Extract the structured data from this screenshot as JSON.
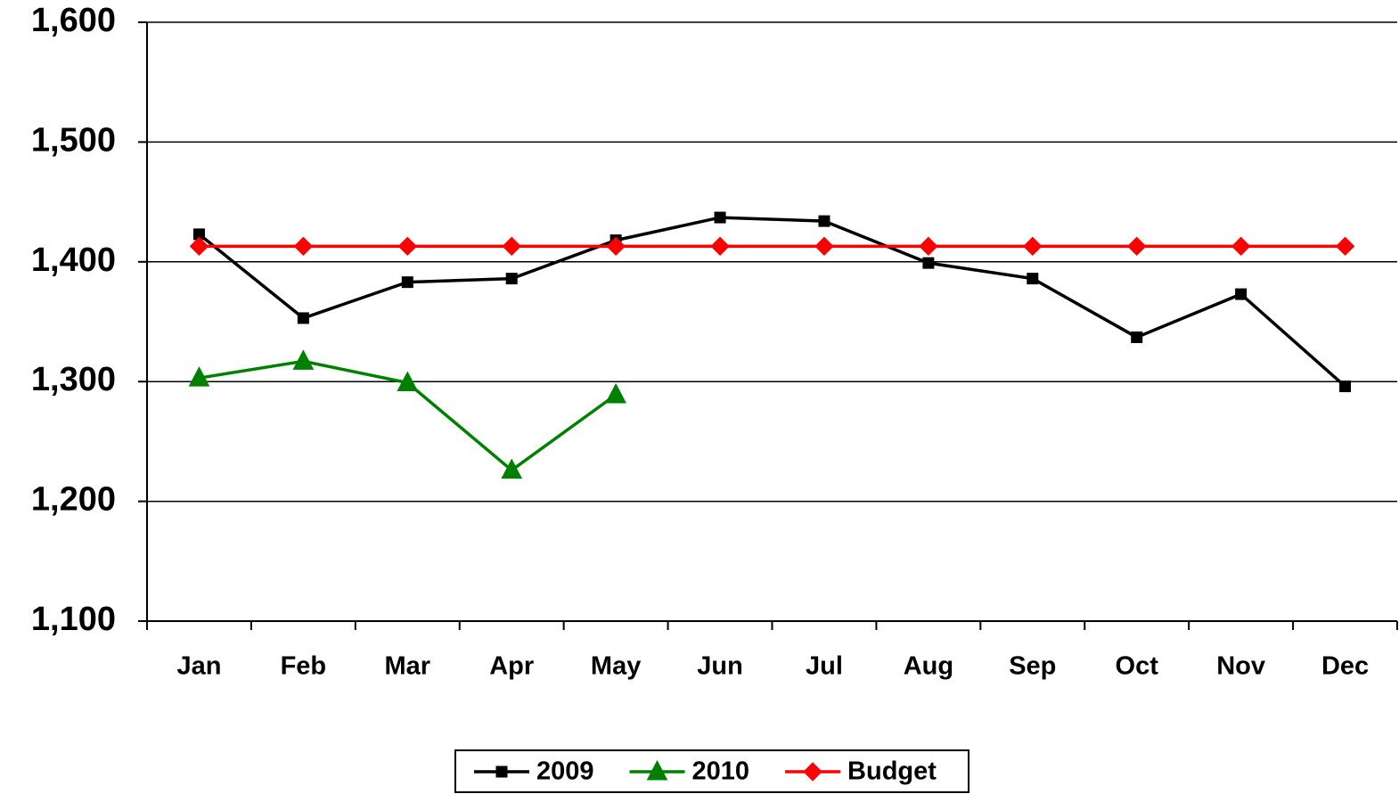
{
  "chart_data": {
    "type": "line",
    "categories": [
      "Jan",
      "Feb",
      "Mar",
      "Apr",
      "May",
      "Jun",
      "Jul",
      "Aug",
      "Sep",
      "Oct",
      "Nov",
      "Dec"
    ],
    "series": [
      {
        "name": "2009",
        "color": "#000000",
        "marker": "square",
        "values": [
          1423,
          1353,
          1383,
          1386,
          1418,
          1437,
          1434,
          1399,
          1386,
          1337,
          1373,
          1296
        ]
      },
      {
        "name": "2010",
        "color": "#008000",
        "marker": "triangle",
        "values": [
          1303,
          1317,
          1299,
          1226,
          1289,
          null,
          null,
          null,
          null,
          null,
          null,
          null
        ]
      },
      {
        "name": "Budget",
        "color": "#ff0000",
        "marker": "diamond",
        "values": [
          1413,
          1413,
          1413,
          1413,
          1413,
          1413,
          1413,
          1413,
          1413,
          1413,
          1413,
          1413
        ]
      }
    ],
    "ylim": [
      1100,
      1600
    ],
    "yticks": [
      {
        "value": 1100,
        "label": "1,100"
      },
      {
        "value": 1200,
        "label": "1,200"
      },
      {
        "value": 1300,
        "label": "1,300"
      },
      {
        "value": 1400,
        "label": "1,400"
      },
      {
        "value": 1500,
        "label": "1,500"
      },
      {
        "value": 1600,
        "label": "1,600"
      }
    ],
    "grid": true,
    "legend": "bottom"
  }
}
